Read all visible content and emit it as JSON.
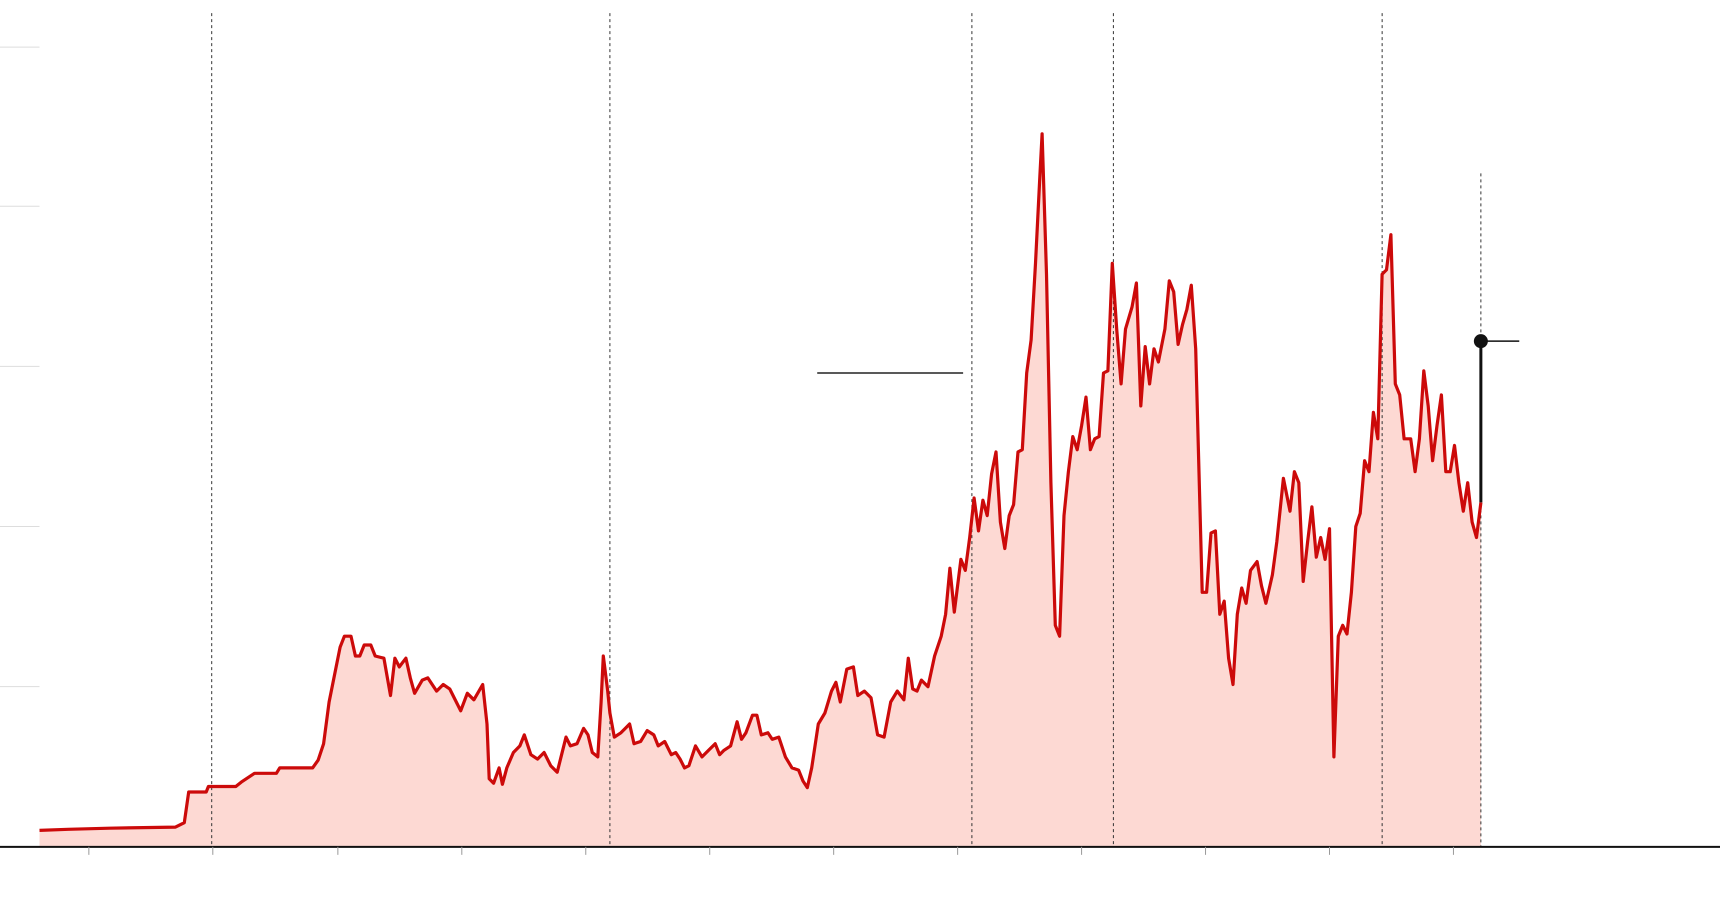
{
  "chart_data": {
    "type": "area",
    "x": [
      36,
      62,
      100,
      160,
      168,
      172,
      188,
      190,
      215,
      220,
      232,
      252,
      255,
      285,
      290,
      295,
      300,
      305,
      310,
      314,
      320,
      324,
      328,
      332,
      338,
      342,
      350,
      356,
      360,
      364,
      370,
      374,
      378,
      385,
      390,
      398,
      404,
      410,
      416,
      420,
      426,
      432,
      440,
      444,
      446,
      450,
      455,
      458,
      462,
      468,
      474,
      478,
      484,
      490,
      496,
      502,
      508,
      512,
      516,
      520,
      526,
      532,
      536,
      540,
      545,
      548,
      550,
      554,
      556,
      560,
      566,
      570,
      574,
      578,
      584,
      590,
      596,
      600,
      606,
      612,
      616,
      620,
      624,
      628,
      634,
      640,
      646,
      652,
      656,
      660,
      666,
      672,
      676,
      680,
      686,
      690,
      694,
      700,
      704,
      710,
      716,
      722,
      728,
      732,
      736,
      740,
      746,
      752,
      758,
      762,
      766,
      772,
      778,
      782,
      788,
      794,
      800,
      806,
      812,
      818,
      824,
      828,
      832,
      836,
      840,
      846,
      852,
      858,
      862,
      866,
      870,
      876,
      880,
      884,
      888,
      892,
      896,
      900,
      904,
      908,
      912,
      916,
      920,
      924,
      928,
      932,
      936,
      940,
      944,
      948,
      950,
      954,
      958,
      962,
      966,
      970,
      974,
      978,
      982,
      986,
      990,
      994,
      998,
      1002,
      1006,
      1010,
      1014,
      1018,
      1022,
      1026,
      1032,
      1036,
      1040,
      1044,
      1048,
      1052,
      1056,
      1062,
      1066,
      1070,
      1074,
      1078,
      1082,
      1086,
      1090,
      1096,
      1100,
      1104,
      1108,
      1112,
      1116,
      1120,
      1124,
      1128,
      1132,
      1136,
      1140,
      1146,
      1150,
      1154,
      1160,
      1164,
      1170,
      1176,
      1180,
      1184,
      1188,
      1192,
      1196,
      1200,
      1204,
      1208,
      1212,
      1216,
      1220,
      1224,
      1228,
      1232,
      1236,
      1240,
      1244,
      1248,
      1252,
      1256,
      1260,
      1264,
      1268,
      1272,
      1276,
      1280,
      1286,
      1290,
      1294,
      1298,
      1302,
      1306,
      1310,
      1314,
      1318,
      1322,
      1326,
      1330,
      1334,
      1338,
      1342,
      1346,
      1350
    ],
    "values": [
      15,
      16,
      17,
      18,
      22,
      50,
      50,
      55,
      55,
      59,
      67,
      67,
      72,
      72,
      79,
      94,
      132,
      157,
      182,
      192,
      192,
      174,
      174,
      184,
      184,
      174,
      172,
      138,
      172,
      164,
      172,
      154,
      140,
      152,
      154,
      142,
      148,
      144,
      132,
      124,
      140,
      134,
      148,
      112,
      62,
      58,
      72,
      57,
      72,
      86,
      92,
      102,
      84,
      80,
      86,
      74,
      68,
      84,
      100,
      92,
      94,
      108,
      102,
      86,
      82,
      132,
      174,
      142,
      122,
      100,
      104,
      108,
      112,
      94,
      96,
      106,
      102,
      92,
      96,
      84,
      86,
      80,
      72,
      74,
      92,
      82,
      88,
      94,
      84,
      88,
      92,
      114,
      98,
      104,
      120,
      120,
      102,
      104,
      98,
      100,
      82,
      72,
      70,
      60,
      54,
      72,
      112,
      122,
      142,
      150,
      132,
      162,
      164,
      138,
      142,
      136,
      102,
      100,
      132,
      142,
      134,
      172,
      144,
      142,
      152,
      146,
      174,
      192,
      212,
      254,
      214,
      262,
      252,
      282,
      318,
      288,
      316,
      302,
      340,
      360,
      296,
      272,
      302,
      312,
      360,
      362,
      432,
      462,
      532,
      612,
      650,
      522,
      332,
      202,
      192,
      302,
      342,
      374,
      362,
      384,
      410,
      362,
      372,
      374,
      432,
      434,
      532,
      472,
      422,
      472,
      492,
      514,
      402,
      456,
      422,
      454,
      442,
      472,
      516,
      506,
      458,
      476,
      490,
      512,
      454,
      232,
      232,
      286,
      288,
      212,
      224,
      172,
      148,
      212,
      236,
      222,
      252,
      260,
      238,
      222,
      248,
      278,
      336,
      306,
      342,
      332,
      242,
      278,
      310,
      264,
      282,
      262,
      290,
      82,
      192,
      202,
      194,
      232,
      292,
      304,
      352,
      342,
      396,
      372,
      522,
      526,
      558,
      422,
      412,
      372,
      372,
      342,
      372,
      434,
      402,
      352,
      384,
      412,
      342,
      342,
      366,
      332,
      306,
      332,
      296,
      282,
      314
    ],
    "color": "#cc0a0a",
    "fill": "#fdd9d3",
    "xlim": [
      0,
      1568
    ],
    "ylim": [
      0,
      772
    ],
    "xticks": [
      81,
      194,
      308,
      421,
      534,
      647,
      760,
      873,
      986,
      1099,
      1212,
      1325
    ],
    "yticks": [
      146,
      292,
      438,
      584,
      729
    ],
    "events": [
      {
        "x": 193,
        "top": 760
      },
      {
        "x": 556,
        "top": 760
      },
      {
        "x": 886,
        "top": 760
      },
      {
        "x": 1015,
        "top": 760
      },
      {
        "x": 1260,
        "top": 760
      },
      {
        "x": 1350,
        "top": 614
      }
    ],
    "reference_line": {
      "x": [
        745,
        878
      ],
      "y": 432
    },
    "current": {
      "x": 1350,
      "y": 461,
      "from": 314,
      "tail": 1385
    }
  }
}
